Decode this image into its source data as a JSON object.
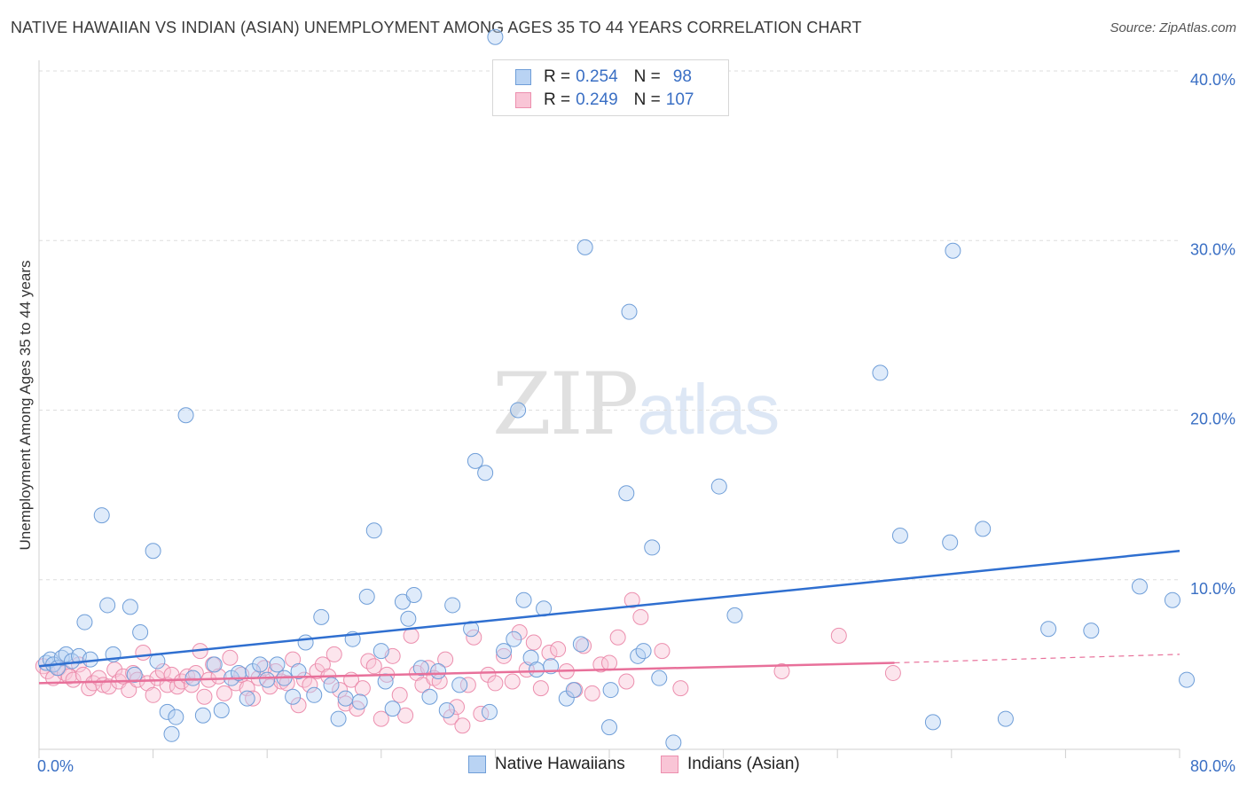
{
  "title": "NATIVE HAWAIIAN VS INDIAN (ASIAN) UNEMPLOYMENT AMONG AGES 35 TO 44 YEARS CORRELATION CHART",
  "source": "Source: ZipAtlas.com",
  "watermark": {
    "zip": "ZIP",
    "atlas": "atlas"
  },
  "legend": {
    "rows": [
      {
        "r_label": "R =",
        "r_value": "0.254",
        "n_label": "N =",
        "n_value": "98"
      },
      {
        "r_label": "R =",
        "r_value": "0.249",
        "n_label": "N =",
        "n_value": "107"
      }
    ]
  },
  "bottom_legend": {
    "series1": "Native Hawaiians",
    "series2": "Indians (Asian)"
  },
  "colors": {
    "blue_fill": "#b9d3f3",
    "blue_stroke": "#6f9ed8",
    "blue_line": "#2f6fd0",
    "pink_fill": "#f9c5d6",
    "pink_stroke": "#ec8fae",
    "pink_line": "#e8709a",
    "grid": "#dddddd",
    "tick": "#3a6fc4"
  },
  "chart_data": {
    "type": "scatter",
    "title": "NATIVE HAWAIIAN VS INDIAN (ASIAN) UNEMPLOYMENT AMONG AGES 35 TO 44 YEARS CORRELATION CHART",
    "xlabel": "",
    "ylabel": "Unemployment Among Ages 35 to 44 years",
    "xlim": [
      0,
      80
    ],
    "ylim": [
      0,
      40
    ],
    "x_tick_labels": [
      "0.0%",
      "80.0%"
    ],
    "y_ticks": [
      10,
      20,
      30,
      40
    ],
    "y_tick_labels": [
      "10.0%",
      "20.0%",
      "30.0%",
      "40.0%"
    ],
    "grid": true,
    "series": [
      {
        "name": "Native Hawaiians",
        "r": 0.254,
        "n": 98,
        "trend": {
          "x": [
            0,
            80
          ],
          "y": [
            4.9,
            11.7
          ]
        },
        "points": [
          [
            0.5,
            5.1
          ],
          [
            0.8,
            5.3
          ],
          [
            1.0,
            5.0
          ],
          [
            1.3,
            4.8
          ],
          [
            1.6,
            5.4
          ],
          [
            1.9,
            5.6
          ],
          [
            2.3,
            5.2
          ],
          [
            2.8,
            5.5
          ],
          [
            3.2,
            7.5
          ],
          [
            3.6,
            5.3
          ],
          [
            4.4,
            13.8
          ],
          [
            4.8,
            8.5
          ],
          [
            5.2,
            5.6
          ],
          [
            6.4,
            8.4
          ],
          [
            6.7,
            4.4
          ],
          [
            7.1,
            6.9
          ],
          [
            8.0,
            11.7
          ],
          [
            8.3,
            5.2
          ],
          [
            9.0,
            2.2
          ],
          [
            9.3,
            0.9
          ],
          [
            9.6,
            1.9
          ],
          [
            10.3,
            19.7
          ],
          [
            10.8,
            4.2
          ],
          [
            11.5,
            2.0
          ],
          [
            12.3,
            5.0
          ],
          [
            12.8,
            2.3
          ],
          [
            13.5,
            4.2
          ],
          [
            14.0,
            4.5
          ],
          [
            14.6,
            3.0
          ],
          [
            15.0,
            4.6
          ],
          [
            15.5,
            5.0
          ],
          [
            16.0,
            4.1
          ],
          [
            16.7,
            5.0
          ],
          [
            17.2,
            4.2
          ],
          [
            17.8,
            3.1
          ],
          [
            18.2,
            4.6
          ],
          [
            18.7,
            6.3
          ],
          [
            19.3,
            3.2
          ],
          [
            19.8,
            7.8
          ],
          [
            20.5,
            3.8
          ],
          [
            21.0,
            1.8
          ],
          [
            21.5,
            3.0
          ],
          [
            22.0,
            6.5
          ],
          [
            22.5,
            2.8
          ],
          [
            23.0,
            9.0
          ],
          [
            23.5,
            12.9
          ],
          [
            24.0,
            5.8
          ],
          [
            24.3,
            4.0
          ],
          [
            24.8,
            2.4
          ],
          [
            25.5,
            8.7
          ],
          [
            25.9,
            7.7
          ],
          [
            26.3,
            9.1
          ],
          [
            26.8,
            4.8
          ],
          [
            27.4,
            3.1
          ],
          [
            28.0,
            4.6
          ],
          [
            28.6,
            2.3
          ],
          [
            29.0,
            8.5
          ],
          [
            29.5,
            3.8
          ],
          [
            30.3,
            7.1
          ],
          [
            30.6,
            17.0
          ],
          [
            31.3,
            16.3
          ],
          [
            31.6,
            2.2
          ],
          [
            32.6,
            5.8
          ],
          [
            33.3,
            6.5
          ],
          [
            33.6,
            20.0
          ],
          [
            34.0,
            8.8
          ],
          [
            34.5,
            5.4
          ],
          [
            34.9,
            4.7
          ],
          [
            35.4,
            8.3
          ],
          [
            35.9,
            4.9
          ],
          [
            37.0,
            3.0
          ],
          [
            37.5,
            3.5
          ],
          [
            38.0,
            6.2
          ],
          [
            38.3,
            29.6
          ],
          [
            40.0,
            1.3
          ],
          [
            40.1,
            3.5
          ],
          [
            41.2,
            15.1
          ],
          [
            41.4,
            25.8
          ],
          [
            42.0,
            5.5
          ],
          [
            42.4,
            5.8
          ],
          [
            43.0,
            11.9
          ],
          [
            43.5,
            4.2
          ],
          [
            44.5,
            0.4
          ],
          [
            47.7,
            15.5
          ],
          [
            48.8,
            7.9
          ],
          [
            59.0,
            22.2
          ],
          [
            60.4,
            12.6
          ],
          [
            62.7,
            1.6
          ],
          [
            63.9,
            12.2
          ],
          [
            64.1,
            29.4
          ],
          [
            66.2,
            13.0
          ],
          [
            67.8,
            1.8
          ],
          [
            70.8,
            7.1
          ],
          [
            73.8,
            7.0
          ],
          [
            77.2,
            9.6
          ],
          [
            79.5,
            8.8
          ],
          [
            80.5,
            4.1
          ],
          [
            32.0,
            42.0
          ]
        ]
      },
      {
        "name": "Indians (Asian)",
        "r": 0.249,
        "n": 107,
        "trend": {
          "x": [
            0,
            60
          ],
          "y": [
            3.9,
            5.1
          ]
        },
        "trend_ext": {
          "x": [
            60,
            80
          ],
          "y": [
            5.1,
            5.6
          ]
        },
        "points": [
          [
            0.3,
            4.9
          ],
          [
            0.6,
            4.6
          ],
          [
            1.0,
            4.2
          ],
          [
            1.4,
            4.8
          ],
          [
            1.8,
            4.5
          ],
          [
            2.1,
            4.3
          ],
          [
            2.4,
            4.1
          ],
          [
            2.8,
            5.0
          ],
          [
            3.1,
            4.4
          ],
          [
            3.5,
            3.6
          ],
          [
            3.8,
            3.9
          ],
          [
            4.2,
            4.2
          ],
          [
            4.5,
            3.8
          ],
          [
            4.9,
            3.7
          ],
          [
            5.3,
            4.7
          ],
          [
            5.6,
            4.0
          ],
          [
            5.9,
            4.3
          ],
          [
            6.3,
            3.5
          ],
          [
            6.6,
            4.5
          ],
          [
            6.9,
            4.1
          ],
          [
            7.3,
            5.7
          ],
          [
            7.6,
            3.9
          ],
          [
            8.0,
            3.2
          ],
          [
            8.3,
            4.2
          ],
          [
            8.7,
            4.6
          ],
          [
            9.0,
            3.8
          ],
          [
            9.3,
            4.4
          ],
          [
            9.7,
            3.7
          ],
          [
            10.0,
            4.0
          ],
          [
            10.4,
            4.3
          ],
          [
            10.7,
            3.8
          ],
          [
            11.0,
            4.5
          ],
          [
            11.3,
            5.8
          ],
          [
            11.6,
            3.1
          ],
          [
            11.9,
            4.1
          ],
          [
            12.2,
            5.0
          ],
          [
            12.6,
            4.3
          ],
          [
            13.0,
            3.3
          ],
          [
            13.4,
            5.4
          ],
          [
            13.8,
            3.9
          ],
          [
            14.2,
            4.4
          ],
          [
            14.6,
            3.6
          ],
          [
            15.0,
            3.0
          ],
          [
            15.4,
            4.2
          ],
          [
            15.8,
            4.8
          ],
          [
            16.2,
            3.7
          ],
          [
            16.6,
            4.6
          ],
          [
            17.0,
            4.0
          ],
          [
            17.4,
            3.9
          ],
          [
            17.8,
            5.3
          ],
          [
            18.2,
            2.6
          ],
          [
            18.6,
            4.1
          ],
          [
            19.0,
            3.8
          ],
          [
            19.5,
            4.6
          ],
          [
            19.9,
            5.0
          ],
          [
            20.3,
            4.3
          ],
          [
            20.7,
            5.6
          ],
          [
            21.1,
            3.5
          ],
          [
            21.5,
            2.7
          ],
          [
            21.9,
            4.1
          ],
          [
            22.3,
            2.4
          ],
          [
            22.7,
            3.6
          ],
          [
            23.1,
            5.2
          ],
          [
            23.5,
            4.9
          ],
          [
            24.0,
            1.8
          ],
          [
            24.4,
            4.4
          ],
          [
            24.8,
            5.5
          ],
          [
            25.3,
            3.2
          ],
          [
            25.7,
            2.0
          ],
          [
            26.1,
            6.7
          ],
          [
            26.5,
            4.5
          ],
          [
            26.9,
            3.8
          ],
          [
            27.3,
            4.8
          ],
          [
            27.7,
            4.2
          ],
          [
            28.1,
            4.0
          ],
          [
            28.5,
            5.3
          ],
          [
            28.9,
            1.9
          ],
          [
            29.3,
            2.5
          ],
          [
            29.7,
            1.4
          ],
          [
            30.1,
            3.8
          ],
          [
            30.5,
            6.6
          ],
          [
            31.0,
            2.1
          ],
          [
            31.5,
            4.4
          ],
          [
            32.0,
            3.9
          ],
          [
            32.6,
            5.5
          ],
          [
            33.2,
            4.0
          ],
          [
            33.7,
            6.9
          ],
          [
            34.2,
            4.7
          ],
          [
            34.7,
            6.3
          ],
          [
            35.2,
            3.6
          ],
          [
            35.8,
            5.7
          ],
          [
            36.4,
            5.9
          ],
          [
            37.0,
            4.6
          ],
          [
            37.6,
            3.5
          ],
          [
            38.2,
            6.1
          ],
          [
            38.8,
            3.3
          ],
          [
            39.4,
            5.0
          ],
          [
            40.0,
            5.1
          ],
          [
            40.6,
            6.6
          ],
          [
            41.2,
            4.0
          ],
          [
            41.6,
            8.8
          ],
          [
            42.2,
            7.8
          ],
          [
            43.7,
            5.8
          ],
          [
            45.0,
            3.6
          ],
          [
            52.1,
            4.6
          ],
          [
            56.1,
            6.7
          ],
          [
            59.9,
            4.5
          ]
        ]
      }
    ]
  }
}
